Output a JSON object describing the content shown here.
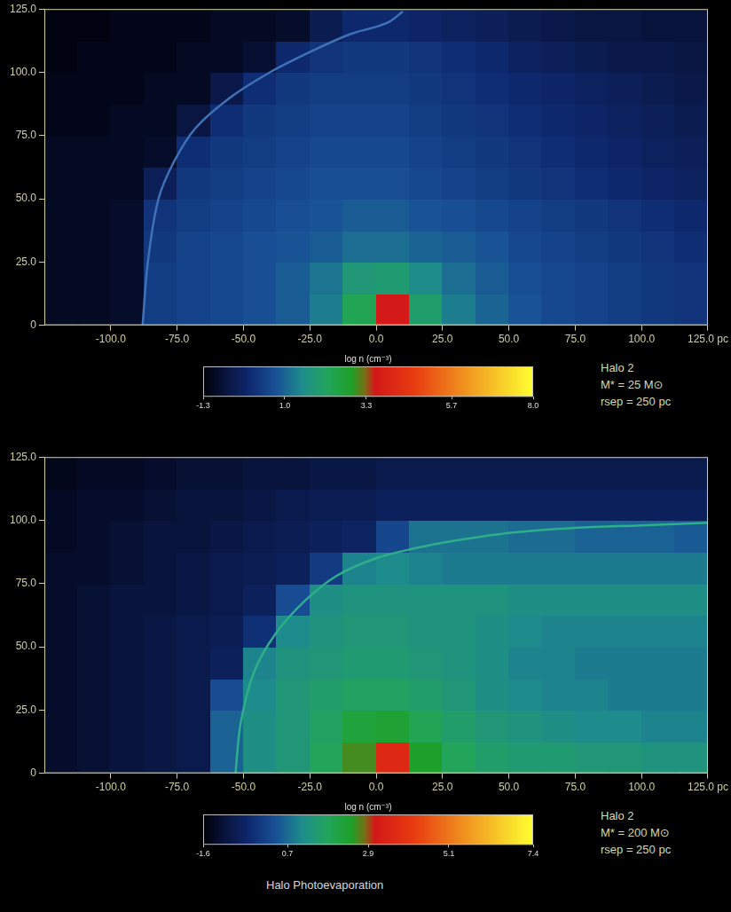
{
  "caption": "Halo Photoevaporation",
  "chart_data": [
    {
      "type": "heatmap",
      "annotations": [
        "Halo 2",
        "M* = 25 M⊙",
        "rsep = 250 pc"
      ],
      "xlim": [
        -125,
        125
      ],
      "xticks": [
        {
          "value": -100,
          "label": "-100.0"
        },
        {
          "value": -75,
          "label": "-75.0"
        },
        {
          "value": -50,
          "label": "-50.0"
        },
        {
          "value": -25,
          "label": "-25.0"
        },
        {
          "value": 0,
          "label": "0.0"
        },
        {
          "value": 25,
          "label": "25.0"
        },
        {
          "value": 50,
          "label": "50.0"
        },
        {
          "value": 75,
          "label": "75.0"
        },
        {
          "value": 100,
          "label": "100.0"
        },
        {
          "value": 125,
          "label": "125.0 pc"
        }
      ],
      "ylim": [
        0,
        125
      ],
      "yticks": [
        0,
        {
          "value": 25,
          "label": "25.0"
        },
        {
          "value": 50,
          "label": "50.0"
        },
        {
          "value": 75,
          "label": "75.0"
        },
        {
          "value": 100,
          "label": "100.0"
        },
        {
          "value": 125,
          "label": "125.0"
        }
      ],
      "x_bins": [
        -125,
        -112.5,
        -100,
        -87.5,
        -75,
        -62.5,
        -50,
        -37.5,
        -25,
        -12.5,
        0,
        12.5,
        25,
        37.5,
        50,
        62.5,
        75,
        87.5,
        100,
        112.5,
        125
      ],
      "y_bins": [
        0,
        12.5,
        25,
        37.5,
        50,
        62.5,
        75,
        87.5,
        100,
        112.5,
        125
      ],
      "values": [
        [
          -1.0,
          -1.0,
          -0.9,
          0.4,
          0.5,
          0.6,
          0.7,
          0.9,
          1.3,
          2.3,
          3.6,
          2.0,
          1.3,
          1.0,
          0.8,
          0.6,
          0.5,
          0.4,
          0.3,
          0.2
        ],
        [
          -1.0,
          -1.0,
          -0.9,
          0.4,
          0.5,
          0.6,
          0.7,
          0.9,
          1.2,
          1.8,
          1.9,
          1.5,
          1.1,
          0.9,
          0.7,
          0.6,
          0.5,
          0.4,
          0.3,
          0.2
        ],
        [
          -1.0,
          -1.0,
          -0.9,
          0.3,
          0.5,
          0.6,
          0.7,
          0.8,
          0.9,
          1.1,
          1.1,
          1.0,
          0.9,
          0.8,
          0.6,
          0.5,
          0.4,
          0.3,
          0.2,
          0.1
        ],
        [
          -1.0,
          -1.0,
          -0.9,
          0.2,
          0.4,
          0.5,
          0.6,
          0.7,
          0.8,
          0.9,
          0.9,
          0.8,
          0.7,
          0.6,
          0.5,
          0.4,
          0.3,
          0.2,
          0.1,
          0.0
        ],
        [
          -1.0,
          -1.0,
          -1.0,
          -0.3,
          0.3,
          0.4,
          0.5,
          0.6,
          0.7,
          0.7,
          0.7,
          0.6,
          0.5,
          0.4,
          0.3,
          0.2,
          0.1,
          0.0,
          -0.1,
          -0.2
        ],
        [
          -1.0,
          -1.0,
          -1.0,
          -0.9,
          0.1,
          0.3,
          0.4,
          0.5,
          0.6,
          0.6,
          0.6,
          0.5,
          0.4,
          0.3,
          0.2,
          0.1,
          0.0,
          -0.1,
          -0.2,
          -0.3
        ],
        [
          -1.1,
          -1.1,
          -1.0,
          -1.0,
          -0.6,
          0.1,
          0.3,
          0.4,
          0.5,
          0.5,
          0.5,
          0.4,
          0.3,
          0.2,
          0.1,
          0.0,
          -0.1,
          -0.2,
          -0.3,
          -0.4
        ],
        [
          -1.1,
          -1.1,
          -1.1,
          -1.0,
          -1.0,
          -0.5,
          0.1,
          0.3,
          0.4,
          0.4,
          0.4,
          0.3,
          0.2,
          0.1,
          0.0,
          -0.1,
          -0.2,
          -0.3,
          -0.4,
          -0.5
        ],
        [
          -1.2,
          -1.1,
          -1.1,
          -1.1,
          -1.0,
          -1.0,
          -0.8,
          0.0,
          0.2,
          0.3,
          0.3,
          0.2,
          0.1,
          0.0,
          -0.2,
          -0.3,
          -0.4,
          -0.5,
          -0.5,
          -0.6
        ],
        [
          -1.2,
          -1.2,
          -1.1,
          -1.1,
          -1.1,
          -1.0,
          -1.0,
          -0.9,
          -0.4,
          0.0,
          0.0,
          -0.1,
          -0.2,
          -0.3,
          -0.4,
          -0.5,
          -0.6,
          -0.6,
          -0.7,
          -0.7
        ]
      ],
      "colorbar": {
        "title": "log n (cm⁻³)",
        "range": [
          -1.3,
          8.0
        ],
        "ticks": [
          -1.3,
          {
            "value": 1.0,
            "label": "1.0"
          },
          3.3,
          5.7,
          {
            "value": 8.0,
            "label": "8.0"
          }
        ]
      },
      "fronts": [
        {
          "color": "#3f72b8",
          "x": [
            -88,
            -86,
            -82,
            -76,
            -68,
            -55,
            -40,
            -25,
            -10,
            0,
            5,
            10
          ],
          "y": [
            0,
            25,
            50,
            65,
            78,
            90,
            100,
            108,
            115,
            118,
            120,
            124
          ]
        }
      ]
    },
    {
      "type": "heatmap",
      "annotations": [
        "Halo 2",
        "M* = 200 M⊙",
        "rsep = 250 pc"
      ],
      "xlim": [
        -125,
        125
      ],
      "xticks": [
        {
          "value": -100,
          "label": "-100.0"
        },
        {
          "value": -75,
          "label": "-75.0"
        },
        {
          "value": -50,
          "label": "-50.0"
        },
        {
          "value": -25,
          "label": "-25.0"
        },
        {
          "value": 0,
          "label": "0.0"
        },
        {
          "value": 25,
          "label": "25.0"
        },
        {
          "value": 50,
          "label": "50.0"
        },
        {
          "value": 75,
          "label": "75.0"
        },
        {
          "value": 100,
          "label": "100.0"
        },
        {
          "value": 125,
          "label": "125.0 pc"
        }
      ],
      "ylim": [
        0,
        125
      ],
      "yticks": [
        0,
        {
          "value": 25,
          "label": "25.0"
        },
        {
          "value": 50,
          "label": "50.0"
        },
        {
          "value": 75,
          "label": "75.0"
        },
        {
          "value": 100,
          "label": "100.0"
        },
        {
          "value": 125,
          "label": "125.0"
        }
      ],
      "x_bins": [
        -125,
        -112.5,
        -100,
        -87.5,
        -75,
        -62.5,
        -50,
        -37.5,
        -25,
        -12.5,
        0,
        12.5,
        25,
        37.5,
        50,
        62.5,
        75,
        87.5,
        100,
        112.5,
        125
      ],
      "y_bins": [
        0,
        12.5,
        25,
        37.5,
        50,
        62.5,
        75,
        87.5,
        100,
        112.5,
        125
      ],
      "values": [
        [
          -1.2,
          -1.1,
          -1.0,
          -0.9,
          -0.8,
          0.6,
          1.2,
          1.4,
          1.8,
          2.6,
          3.6,
          2.4,
          1.8,
          1.6,
          1.5,
          1.5,
          1.4,
          1.4,
          1.3,
          1.3
        ],
        [
          -1.2,
          -1.1,
          -1.0,
          -0.9,
          -0.8,
          0.6,
          1.2,
          1.4,
          1.7,
          2.2,
          2.3,
          1.9,
          1.6,
          1.4,
          1.3,
          1.2,
          1.1,
          1.1,
          1.0,
          1.0
        ],
        [
          -1.2,
          -1.1,
          -1.0,
          -0.9,
          -0.8,
          0.3,
          1.1,
          1.4,
          1.6,
          1.7,
          1.7,
          1.6,
          1.4,
          1.2,
          1.1,
          1.0,
          1.0,
          0.9,
          0.9,
          0.9
        ],
        [
          -1.2,
          -1.1,
          -1.0,
          -0.9,
          -0.8,
          -0.6,
          1.0,
          1.3,
          1.4,
          1.5,
          1.5,
          1.4,
          1.3,
          1.2,
          1.0,
          1.0,
          0.9,
          0.9,
          0.9,
          0.9
        ],
        [
          -1.2,
          -1.1,
          -1.0,
          -0.9,
          -0.8,
          -0.7,
          -0.2,
          1.1,
          1.3,
          1.4,
          1.4,
          1.3,
          1.3,
          1.2,
          1.1,
          1.0,
          1.0,
          1.0,
          1.0,
          1.0
        ],
        [
          -1.2,
          -1.1,
          -1.0,
          -1.0,
          -0.9,
          -0.8,
          -0.6,
          0.3,
          1.2,
          1.3,
          1.3,
          1.3,
          1.3,
          1.3,
          1.2,
          1.2,
          1.2,
          1.2,
          1.2,
          1.2
        ],
        [
          -1.2,
          -1.2,
          -1.1,
          -1.0,
          -0.9,
          -0.8,
          -0.7,
          -0.6,
          0.0,
          1.0,
          1.1,
          1.0,
          0.9,
          0.9,
          0.9,
          0.9,
          0.9,
          0.9,
          0.9,
          0.9
        ],
        [
          -1.3,
          -1.2,
          -1.1,
          -1.0,
          -1.0,
          -0.9,
          -0.8,
          -0.7,
          -0.6,
          -0.5,
          0.2,
          0.8,
          0.8,
          0.8,
          0.7,
          0.7,
          0.6,
          0.6,
          0.6,
          0.5
        ],
        [
          -1.3,
          -1.2,
          -1.2,
          -1.1,
          -1.0,
          -1.0,
          -0.9,
          -0.8,
          -0.7,
          -0.7,
          -0.6,
          -0.6,
          -0.6,
          -0.6,
          -0.6,
          -0.6,
          -0.6,
          -0.6,
          -0.6,
          -0.6
        ],
        [
          -1.4,
          -1.3,
          -1.3,
          -1.2,
          -1.1,
          -1.1,
          -1.0,
          -1.0,
          -0.9,
          -0.9,
          -0.8,
          -0.8,
          -0.8,
          -0.8,
          -0.8,
          -0.8,
          -0.8,
          -0.8,
          -0.8,
          -0.8
        ]
      ],
      "colorbar": {
        "title": "log n (cm⁻³)",
        "range": [
          -1.6,
          7.4
        ],
        "ticks": [
          -1.6,
          0.7,
          2.9,
          5.1,
          7.4
        ]
      },
      "fronts": [
        {
          "color": "#2fae8a",
          "x": [
            -53,
            -51,
            -46,
            -38,
            -27,
            -15,
            0,
            15,
            30,
            50,
            75,
            100,
            125
          ],
          "y": [
            0,
            20,
            40,
            55,
            68,
            78,
            85,
            89,
            92,
            95,
            97,
            98,
            99
          ]
        }
      ]
    }
  ]
}
